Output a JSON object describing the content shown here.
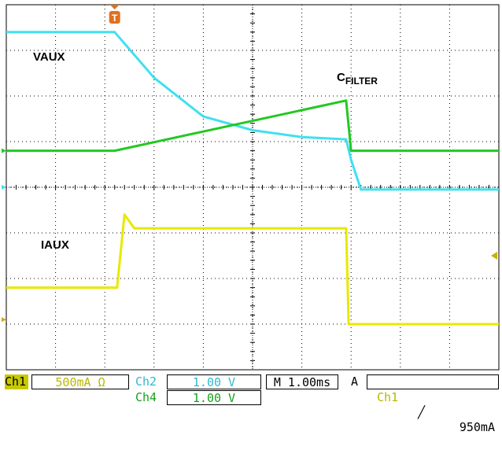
{
  "labels": {
    "vaux": "VAUX",
    "iaux": "IAUX",
    "cfilter_main": "C",
    "cfilter_sub": "FILTER"
  },
  "trigger_marker": "T",
  "status": {
    "ch1_tag": "Ch1",
    "ch1_scale": "500mA Ω",
    "ch2_tag": "Ch2",
    "ch2_scale": "1.00 V",
    "ch4_tag": "Ch4",
    "ch4_scale": "1.00 V",
    "timebase": "M 1.00ms",
    "trigger_mode": "A",
    "trigger_source": "Ch1",
    "trigger_slope": "╱",
    "trigger_level": "950mA"
  },
  "colors": {
    "ch1": "#e8e800",
    "ch2": "#40e0f0",
    "ch4": "#22c822",
    "grid": "#000000",
    "trigger": "#e07020"
  },
  "chart_data": {
    "type": "line",
    "x_unit": "div",
    "xlim": [
      0,
      10
    ],
    "ylim": [
      -4,
      4
    ],
    "grid": true,
    "series": [
      {
        "name": "VAUX",
        "channel": "Ch2",
        "x": [
          0,
          2.2,
          3.0,
          4.0,
          5.0,
          6.0,
          6.9,
          7.0,
          7.2,
          10
        ],
        "y": [
          3.4,
          3.4,
          2.4,
          1.55,
          1.25,
          1.1,
          1.05,
          0.6,
          -0.05,
          -0.05
        ]
      },
      {
        "name": "CFILTER",
        "channel": "Ch4",
        "x": [
          0,
          2.2,
          6.9,
          7.0,
          10
        ],
        "y": [
          0.8,
          0.8,
          1.9,
          0.8,
          0.8
        ]
      },
      {
        "name": "IAUX",
        "channel": "Ch1",
        "x": [
          0,
          2.25,
          2.4,
          2.6,
          6.9,
          6.95,
          10
        ],
        "y": [
          -2.2,
          -2.2,
          -0.6,
          -0.9,
          -0.9,
          -3.0,
          -3.0
        ]
      }
    ]
  }
}
